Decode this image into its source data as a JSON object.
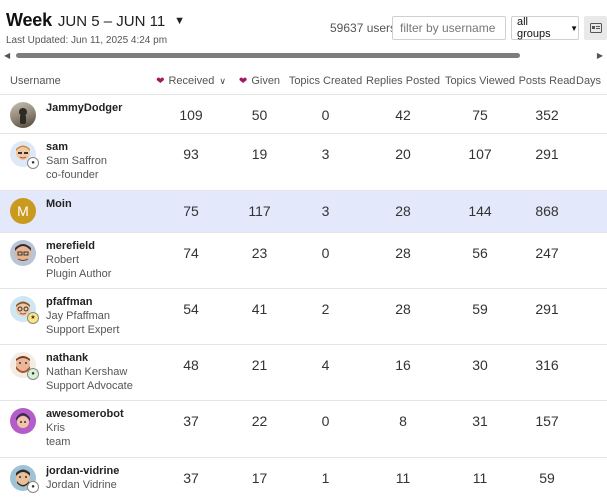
{
  "period": {
    "word": "Week",
    "range": "JUN 5 – JUN 11"
  },
  "last_updated": "Last Updated: Jun 11, 2025 4:24 pm",
  "users_count": "59637 users",
  "filter": {
    "placeholder": "filter by username",
    "value": ""
  },
  "group_select": {
    "selected": "all groups"
  },
  "columns": {
    "username": "Username",
    "received": "Received",
    "given": "Given",
    "topics_created": "Topics Created",
    "replies_posted": "Replies Posted",
    "topics_viewed": "Topics Viewed",
    "posts_read": "Posts Read",
    "days": "Days"
  },
  "colors": {
    "heart": "#a0185e",
    "highlight_row": "#e3e9fb"
  },
  "rows": [
    {
      "username": "JammyDodger",
      "full_name": "",
      "title": "",
      "received": "109",
      "given": "50",
      "topics_created": "0",
      "replies_posted": "42",
      "topics_viewed": "75",
      "posts_read": "352"
    },
    {
      "username": "sam",
      "full_name": "Sam Saffron",
      "title": "co-founder",
      "received": "93",
      "given": "19",
      "topics_created": "3",
      "replies_posted": "20",
      "topics_viewed": "107",
      "posts_read": "291"
    },
    {
      "username": "Moin",
      "full_name": "",
      "title": "",
      "avatar_letter": "M",
      "received": "75",
      "given": "117",
      "topics_created": "3",
      "replies_posted": "28",
      "topics_viewed": "144",
      "posts_read": "868"
    },
    {
      "username": "merefield",
      "full_name": "Robert",
      "title": "Plugin Author",
      "received": "74",
      "given": "23",
      "topics_created": "0",
      "replies_posted": "28",
      "topics_viewed": "56",
      "posts_read": "247"
    },
    {
      "username": "pfaffman",
      "full_name": "Jay Pfaffman",
      "title": "Support Expert",
      "received": "54",
      "given": "41",
      "topics_created": "2",
      "replies_posted": "28",
      "topics_viewed": "59",
      "posts_read": "291"
    },
    {
      "username": "nathank",
      "full_name": "Nathan Kershaw",
      "title": "Support Advocate",
      "received": "48",
      "given": "21",
      "topics_created": "4",
      "replies_posted": "16",
      "topics_viewed": "30",
      "posts_read": "316"
    },
    {
      "username": "awesomerobot",
      "full_name": "Kris",
      "title": "team",
      "received": "37",
      "given": "22",
      "topics_created": "0",
      "replies_posted": "8",
      "topics_viewed": "31",
      "posts_read": "157"
    },
    {
      "username": "jordan-vidrine",
      "full_name": "Jordan Vidrine",
      "title": "",
      "received": "37",
      "given": "17",
      "topics_created": "1",
      "replies_posted": "11",
      "topics_viewed": "11",
      "posts_read": "59"
    }
  ]
}
